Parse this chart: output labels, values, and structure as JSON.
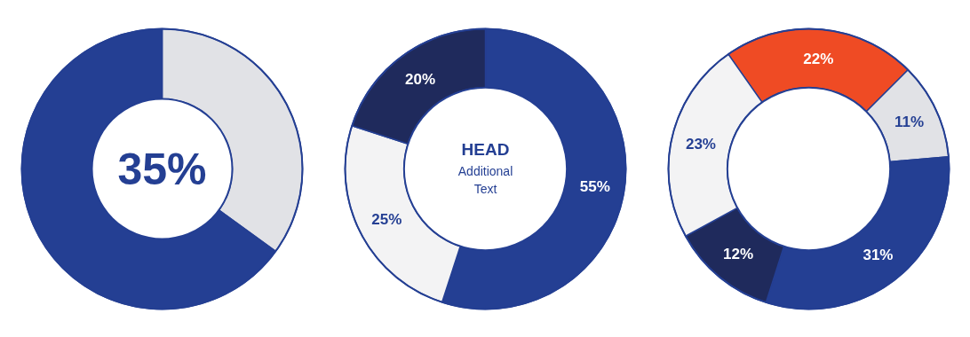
{
  "chart_data": [
    {
      "type": "donut",
      "categories": [
        null,
        null
      ],
      "values": [
        35,
        65
      ],
      "colors": [
        "#e1e2e6",
        "#243f93"
      ],
      "annotations": [
        "35%"
      ]
    },
    {
      "type": "donut",
      "categories": [
        null,
        null,
        null
      ],
      "values": [
        55,
        25,
        20
      ],
      "colors": [
        "#243f93",
        "#f3f3f4",
        "#1f2a5c"
      ],
      "value_labels": [
        "55%",
        "25%",
        "20%"
      ],
      "annotations": [
        "HEAD",
        "Additional Text"
      ]
    },
    {
      "type": "donut",
      "categories": [
        null,
        null,
        null,
        null,
        null
      ],
      "values": [
        22,
        11,
        31,
        12,
        23
      ],
      "colors": [
        "#ef4b24",
        "#e1e2e6",
        "#243f93",
        "#1f2a5c",
        "#f3f3f4"
      ],
      "value_labels": [
        "22%",
        "11%",
        "31%",
        "12%",
        "23%"
      ]
    }
  ]
}
